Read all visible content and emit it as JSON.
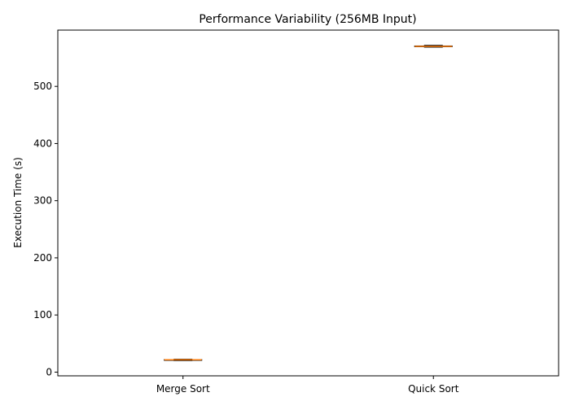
{
  "chart_data": {
    "type": "box",
    "title": "Performance Variability (256MB Input)",
    "xlabel": "",
    "ylabel": "Execution Time (s)",
    "categories": [
      "Merge Sort",
      "Quick Sort"
    ],
    "series": [
      {
        "name": "",
        "values": [
          {
            "min": 20.2,
            "q1": 21.1,
            "median": 21.6,
            "q3": 22.0,
            "max": 22.6
          },
          {
            "min": 568.6,
            "q1": 569.5,
            "median": 570.1,
            "q3": 570.8,
            "max": 571.8
          }
        ]
      }
    ],
    "ylim": [
      -6.5,
      598.5
    ],
    "yticks": [
      0,
      100,
      200,
      300,
      400,
      500
    ],
    "grid": false,
    "legend": "none",
    "colors": {
      "box": "#000000",
      "median": "#ff7f0e"
    }
  }
}
